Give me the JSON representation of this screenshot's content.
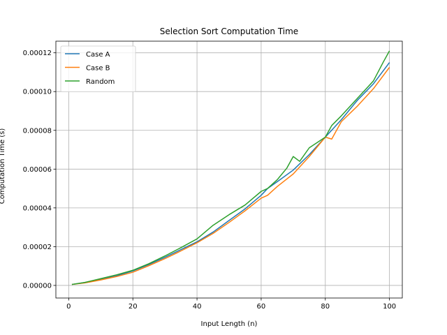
{
  "chart_data": {
    "type": "line",
    "title": "Selection Sort Computation Time",
    "xlabel": "Input Length (n)",
    "ylabel": "Computation Time (s)",
    "xlim": [
      -4,
      104
    ],
    "ylim": [
      -6.5e-06,
      0.000126
    ],
    "x_ticks": [
      0,
      20,
      40,
      60,
      80,
      100
    ],
    "x_tick_labels": [
      "0",
      "20",
      "40",
      "60",
      "80",
      "100"
    ],
    "y_ticks": [
      0,
      2e-05,
      4e-05,
      6e-05,
      8e-05,
      0.0001,
      0.00012
    ],
    "y_tick_labels": [
      "0.00000",
      "0.00002",
      "0.00004",
      "0.00006",
      "0.00008",
      "0.00010",
      "0.00012"
    ],
    "grid": true,
    "legend_position": "top-left",
    "series": [
      {
        "name": "Case A",
        "color": "#1f77b4",
        "x": [
          1,
          5,
          10,
          15,
          20,
          25,
          30,
          35,
          40,
          45,
          50,
          55,
          60,
          62,
          65,
          70,
          75,
          80,
          85,
          90,
          95,
          100
        ],
        "y": [
          5e-07,
          1.5e-06,
          3e-06,
          5e-06,
          7.5e-06,
          1.08e-05,
          1.45e-05,
          1.85e-05,
          2.25e-05,
          2.75e-05,
          3.35e-05,
          3.95e-05,
          4.65e-05,
          5e-05,
          5.35e-05,
          5.95e-05,
          6.75e-05,
          7.65e-05,
          8.55e-05,
          9.55e-05,
          0.000104,
          0.000115
        ]
      },
      {
        "name": "Case B",
        "color": "#ff7f0e",
        "x": [
          1,
          5,
          10,
          15,
          20,
          25,
          30,
          35,
          40,
          45,
          50,
          55,
          60,
          62,
          65,
          70,
          75,
          80,
          82,
          85,
          90,
          95,
          100
        ],
        "y": [
          5e-07,
          1.3e-06,
          2.8e-06,
          4.6e-06,
          6.8e-06,
          1.02e-05,
          1.38e-05,
          1.78e-05,
          2.2e-05,
          2.68e-05,
          3.25e-05,
          3.85e-05,
          4.5e-05,
          4.65e-05,
          5.1e-05,
          5.75e-05,
          6.65e-05,
          7.65e-05,
          7.55e-05,
          8.45e-05,
          9.25e-05,
          0.0001015,
          0.0001125
        ]
      },
      {
        "name": "Random",
        "color": "#2ca02c",
        "x": [
          1,
          5,
          10,
          15,
          20,
          25,
          30,
          35,
          40,
          45,
          50,
          55,
          60,
          62,
          65,
          68,
          70,
          72,
          75,
          80,
          82,
          85,
          90,
          95,
          98,
          100
        ],
        "y": [
          5e-07,
          1.5e-06,
          3.5e-06,
          5.5e-06,
          7.8e-06,
          1.12e-05,
          1.52e-05,
          1.95e-05,
          2.4e-05,
          3.1e-05,
          3.65e-05,
          4.15e-05,
          4.85e-05,
          5e-05,
          5.45e-05,
          6.05e-05,
          6.65e-05,
          6.4e-05,
          7.1e-05,
          7.65e-05,
          8.25e-05,
          8.75e-05,
          9.65e-05,
          0.0001055,
          0.000115,
          0.000121
        ]
      }
    ]
  }
}
